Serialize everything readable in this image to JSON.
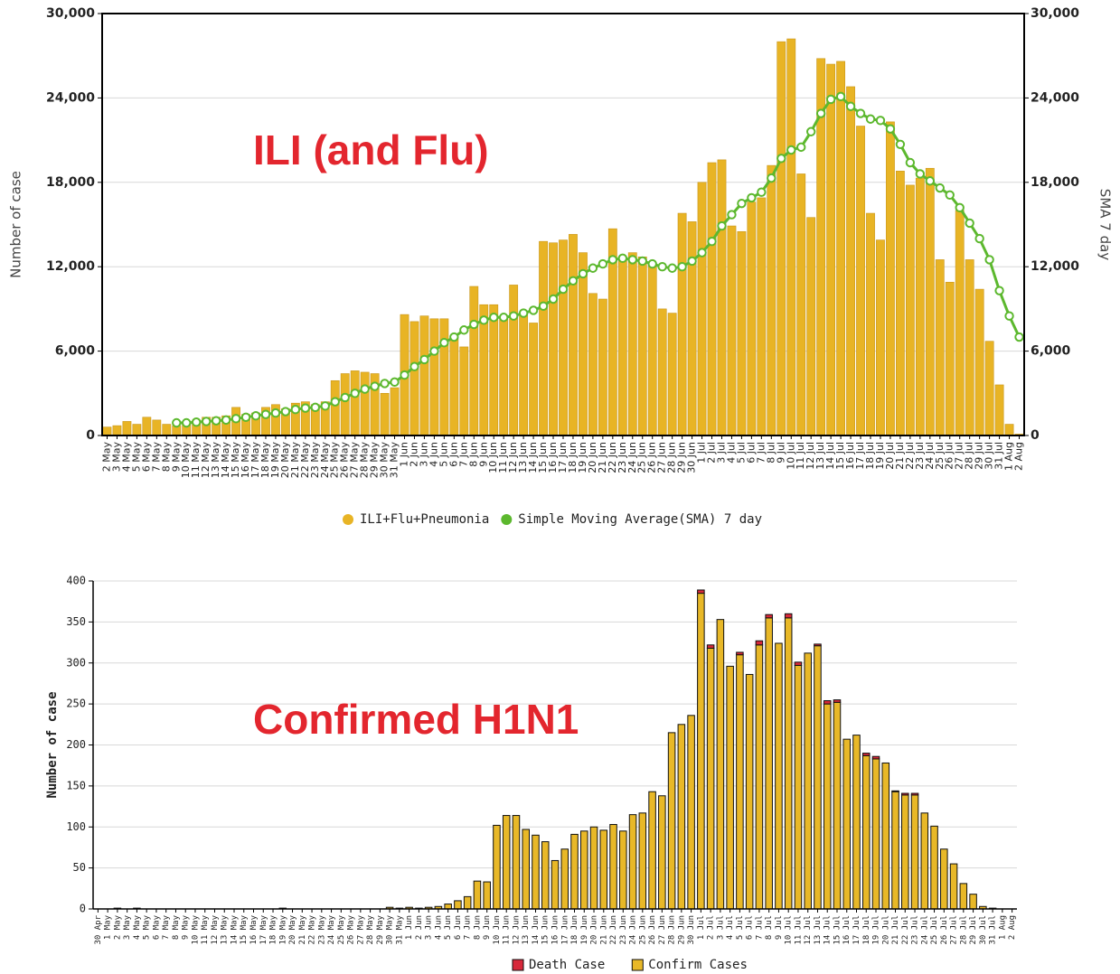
{
  "chart_data": [
    {
      "type": "bar",
      "annotation": "ILI (and Flu)",
      "y_label": "Number of case",
      "y2_label": "SMA 7 day",
      "categories": [
        "2 May",
        "3 May",
        "4 May",
        "5 May",
        "6 May",
        "7 May",
        "8 May",
        "9 May",
        "10 May",
        "11 May",
        "12 May",
        "13 May",
        "14 May",
        "15 May",
        "16 May",
        "17 May",
        "18 May",
        "19 May",
        "20 May",
        "21 May",
        "22 May",
        "23 May",
        "24 May",
        "25 May",
        "26 May",
        "27 May",
        "28 May",
        "29 May",
        "30 May",
        "31 May",
        "1 Jun",
        "2 Jun",
        "3 Jun",
        "4 Jun",
        "5 Jun",
        "6 Jun",
        "7 Jun",
        "8 Jun",
        "9 Jun",
        "10 Jun",
        "11 Jun",
        "12 Jun",
        "13 Jun",
        "14 Jun",
        "15 Jun",
        "16 Jun",
        "17 Jun",
        "18 Jun",
        "19 Jun",
        "20 Jun",
        "21 Jun",
        "22 Jun",
        "23 Jun",
        "24 Jun",
        "25 Jun",
        "26 Jun",
        "27 Jun",
        "28 Jun",
        "29 Jun",
        "30 Jun",
        "1 Jul",
        "2 Jul",
        "3 Jul",
        "4 Jul",
        "5 Jul",
        "6 Jul",
        "7 Jul",
        "8 Jul",
        "9 Jul",
        "10 Jul",
        "11 Jul",
        "12 Jul",
        "13 Jul",
        "14 Jul",
        "15 Jul",
        "16 Jul",
        "17 Jul",
        "18 Jul",
        "19 Jul",
        "20 Jul",
        "21 Jul",
        "22 Jul",
        "23 Jul",
        "24 Jul",
        "25 Jul",
        "26 Jul",
        "27 Jul",
        "28 Jul",
        "29 Jul",
        "30 Jul",
        "31 Jul",
        "1 Aug",
        "2 Aug"
      ],
      "series": [
        {
          "name": "ILI+Flu+Pneumonia",
          "type": "bar",
          "color": "#e8b425",
          "values": [
            600,
            700,
            1000,
            800,
            1300,
            1100,
            800,
            700,
            900,
            1100,
            1300,
            1300,
            1400,
            2000,
            1500,
            1600,
            2000,
            2200,
            1900,
            2300,
            2400,
            2200,
            2400,
            3900,
            4400,
            4600,
            4500,
            4400,
            3000,
            3400,
            8600,
            8100,
            8500,
            8300,
            8300,
            7000,
            6300,
            10600,
            9300,
            9300,
            8400,
            10700,
            8600,
            8000,
            13800,
            13700,
            13900,
            14300,
            13000,
            10100,
            9700,
            14700,
            12500,
            13000,
            12700,
            12200,
            9000,
            8700,
            15800,
            15200,
            18000,
            19400,
            19600,
            14900,
            14500,
            16600,
            16900,
            19200,
            28000,
            28200,
            18600,
            15500,
            26800,
            26400,
            26600,
            24800,
            22000,
            15800,
            13900,
            22300,
            18800,
            17800,
            18300,
            19000,
            12500,
            10900,
            16000,
            12500,
            10400,
            6700,
            3600,
            800,
            100
          ]
        },
        {
          "name": "Simple Moving Average(SMA) 7 day",
          "type": "line",
          "axis": "y2",
          "color": "#5cb82e",
          "values": [
            null,
            null,
            null,
            null,
            null,
            null,
            null,
            900,
            900,
            950,
            1000,
            1050,
            1100,
            1200,
            1300,
            1400,
            1500,
            1600,
            1700,
            1850,
            1950,
            2000,
            2100,
            2400,
            2700,
            3000,
            3300,
            3500,
            3700,
            3800,
            4300,
            4900,
            5400,
            6000,
            6600,
            7000,
            7500,
            7900,
            8200,
            8400,
            8400,
            8500,
            8700,
            8900,
            9200,
            9700,
            10400,
            11000,
            11500,
            11900,
            12200,
            12500,
            12600,
            12500,
            12400,
            12200,
            12000,
            11900,
            12000,
            12400,
            13000,
            13800,
            14900,
            15700,
            16500,
            16900,
            17300,
            18300,
            19700,
            20300,
            20500,
            21600,
            22900,
            23900,
            24100,
            23400,
            22900,
            22500,
            22400,
            21800,
            20700,
            19400,
            18600,
            18100,
            17600,
            17100,
            16200,
            15100,
            14000,
            12500,
            10300,
            8500,
            7000
          ]
        }
      ],
      "ylim": [
        0,
        30000
      ],
      "yticks": [
        0,
        {
          "value": 6000,
          "label": "6,000"
        },
        {
          "value": 12000,
          "label": "12,000"
        },
        {
          "value": 18000,
          "label": "18,000"
        },
        {
          "value": 24000,
          "label": "24,000"
        },
        {
          "value": 30000,
          "label": "30,000"
        }
      ],
      "y2lim": [
        0,
        30000
      ],
      "y2ticks": [
        0,
        {
          "value": 6000,
          "label": "6,000"
        },
        {
          "value": 12000,
          "label": "12,000"
        },
        {
          "value": 18000,
          "label": "18,000"
        },
        {
          "value": 24000,
          "label": "24,000"
        },
        {
          "value": 30000,
          "label": "30,000"
        }
      ],
      "grid": true,
      "legend": "bottom"
    },
    {
      "type": "stacked_bar",
      "annotation": "Confirmed H1N1",
      "y_label": "Number of case",
      "categories": [
        "30 Apr",
        "1 May",
        "2 May",
        "3 May",
        "4 May",
        "5 May",
        "6 May",
        "7 May",
        "8 May",
        "9 May",
        "10 May",
        "11 May",
        "12 May",
        "13 May",
        "14 May",
        "15 May",
        "16 May",
        "17 May",
        "18 May",
        "19 May",
        "20 May",
        "21 May",
        "22 May",
        "23 May",
        "24 May",
        "25 May",
        "26 May",
        "27 May",
        "28 May",
        "29 May",
        "30 May",
        "31 May",
        "1 Jun",
        "2 Jun",
        "3 Jun",
        "4 Jun",
        "5 Jun",
        "6 Jun",
        "7 Jun",
        "8 Jun",
        "9 Jun",
        "10 Jun",
        "11 Jun",
        "12 Jun",
        "13 Jun",
        "14 Jun",
        "15 Jun",
        "16 Jun",
        "17 Jun",
        "18 Jun",
        "19 Jun",
        "20 Jun",
        "21 Jun",
        "22 Jun",
        "23 Jun",
        "24 Jun",
        "25 Jun",
        "26 Jun",
        "27 Jun",
        "28 Jun",
        "29 Jun",
        "30 Jun",
        "1 Jul",
        "2 Jul",
        "3 Jul",
        "4 Jul",
        "5 Jul",
        "6 Jul",
        "7 Jul",
        "8 Jul",
        "9 Jul",
        "10 Jul",
        "11 Jul",
        "12 Jul",
        "13 Jul",
        "14 Jul",
        "15 Jul",
        "16 Jul",
        "17 Jul",
        "18 Jul",
        "19 Jul",
        "20 Jul",
        "21 Jul",
        "22 Jul",
        "23 Jul",
        "24 Jul",
        "25 Jul",
        "26 Jul",
        "27 Jul",
        "28 Jul",
        "29 Jul",
        "30 Jul",
        "31 Jul",
        "1 Aug",
        "2 Aug"
      ],
      "series": [
        {
          "name": "Death Case",
          "color": "#d7283a",
          "values": [
            0,
            0,
            0,
            0,
            0,
            0,
            0,
            0,
            0,
            0,
            0,
            0,
            0,
            0,
            0,
            0,
            0,
            0,
            0,
            0,
            0,
            0,
            0,
            0,
            0,
            0,
            0,
            0,
            0,
            0,
            0,
            0,
            0,
            0,
            0,
            0,
            0,
            0,
            0,
            0,
            0,
            0,
            0,
            0,
            0,
            0,
            0,
            0,
            0,
            0,
            0,
            0,
            0,
            0,
            0,
            0,
            0,
            0,
            0,
            0,
            0,
            0,
            4,
            4,
            0,
            0,
            3,
            0,
            5,
            4,
            0,
            5,
            4,
            0,
            2,
            4,
            3,
            0,
            0,
            3,
            3,
            0,
            1,
            2,
            2,
            0,
            0,
            0,
            0,
            0,
            0,
            0,
            0,
            0,
            0
          ]
        },
        {
          "name": "Confirm Cases",
          "color": "#e8b828",
          "values": [
            0,
            0,
            1,
            0,
            1,
            0,
            0,
            0,
            0,
            0,
            0,
            0,
            0,
            0,
            0,
            0,
            0,
            0,
            0,
            1,
            0,
            0,
            0,
            0,
            0,
            0,
            0,
            0,
            0,
            0,
            2,
            1,
            2,
            1,
            2,
            3,
            6,
            10,
            15,
            34,
            33,
            102,
            114,
            114,
            97,
            90,
            82,
            59,
            73,
            91,
            95,
            100,
            96,
            103,
            95,
            115,
            117,
            143,
            138,
            215,
            225,
            236,
            385,
            318,
            353,
            296,
            310,
            286,
            322,
            355,
            324,
            355,
            297,
            312,
            321,
            250,
            252,
            207,
            212,
            187,
            183,
            178,
            143,
            139,
            139,
            117,
            101,
            73,
            55,
            31,
            18,
            3,
            1,
            0,
            0
          ]
        }
      ],
      "ylim": [
        0,
        400
      ],
      "yticks": [
        0,
        50,
        100,
        150,
        200,
        250,
        300,
        350,
        400
      ],
      "grid": true,
      "legend": "bottom"
    }
  ]
}
